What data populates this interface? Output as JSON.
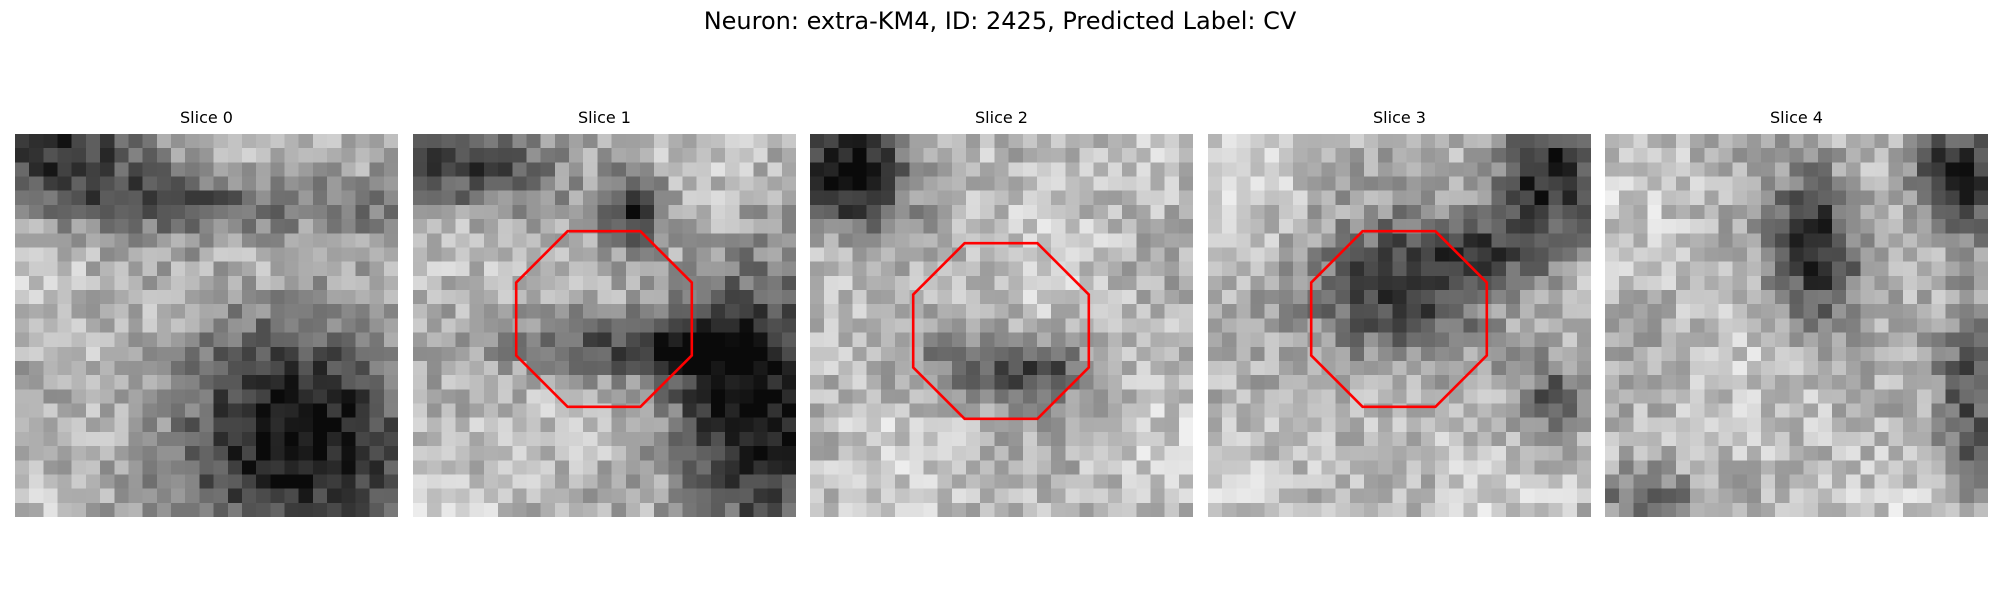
{
  "figure": {
    "title": "Neuron: extra-KM4, ID: 2425, Predicted Label: CV"
  },
  "panels": [
    {
      "title": "Slice 0",
      "roi": false,
      "seed": 11,
      "blobs": [
        [
          0.12,
          0.04,
          0.22,
          0.14,
          0.55
        ],
        [
          0.75,
          0.8,
          0.35,
          0.32,
          0.7
        ],
        [
          0.55,
          0.18,
          0.55,
          0.09,
          0.35
        ]
      ]
    },
    {
      "title": "Slice 1",
      "roi": true,
      "seed": 23,
      "blobs": [
        [
          0.9,
          0.72,
          0.22,
          0.38,
          0.7
        ],
        [
          0.12,
          0.08,
          0.22,
          0.12,
          0.55
        ],
        [
          0.58,
          0.2,
          0.08,
          0.1,
          0.55
        ],
        [
          0.4,
          0.55,
          0.18,
          0.1,
          0.35
        ],
        [
          0.68,
          0.56,
          0.2,
          0.08,
          0.4
        ]
      ]
    },
    {
      "title": "Slice 2",
      "roi": true,
      "seed": 37,
      "blobs": [
        [
          0.1,
          0.1,
          0.16,
          0.14,
          0.75
        ],
        [
          0.45,
          0.6,
          0.22,
          0.1,
          0.32
        ],
        [
          0.62,
          0.62,
          0.12,
          0.08,
          0.25
        ]
      ]
    },
    {
      "title": "Slice 3",
      "roi": true,
      "seed": 51,
      "blobs": [
        [
          0.48,
          0.42,
          0.22,
          0.18,
          0.55
        ],
        [
          0.88,
          0.1,
          0.14,
          0.18,
          0.65
        ],
        [
          0.9,
          0.7,
          0.08,
          0.1,
          0.4
        ],
        [
          0.72,
          0.3,
          0.18,
          0.1,
          0.35
        ]
      ]
    },
    {
      "title": "Slice 4",
      "roi": false,
      "seed": 67,
      "blobs": [
        [
          0.55,
          0.3,
          0.12,
          0.2,
          0.6
        ],
        [
          0.92,
          0.12,
          0.12,
          0.14,
          0.7
        ],
        [
          0.95,
          0.7,
          0.08,
          0.25,
          0.45
        ],
        [
          0.1,
          0.95,
          0.14,
          0.08,
          0.4
        ]
      ]
    }
  ],
  "style": {
    "roi_color": "#ff0000",
    "colormap": "gray"
  }
}
